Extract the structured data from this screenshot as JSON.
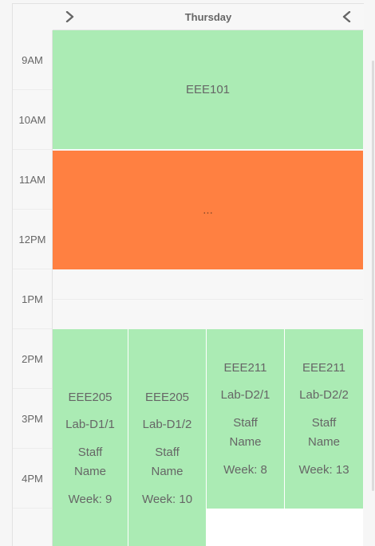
{
  "header": {
    "day": "Thursday",
    "next_icon": "chevron-right-icon",
    "prev_icon": "chevron-left-icon"
  },
  "times": [
    "9AM",
    "10AM",
    "11AM",
    "12PM",
    "1PM",
    "2PM",
    "3PM",
    "4PM"
  ],
  "events": {
    "eee101": {
      "title": "EEE101",
      "color": "#abebb4"
    },
    "ellipsis_event": {
      "title": "...",
      "color": "#ff8041"
    },
    "eee205_a": {
      "title": "EEE205",
      "lab": "Lab-D1/1",
      "staff_line1": "Staff",
      "staff_line2": "Name",
      "week": "Week: 9"
    },
    "eee205_b": {
      "title": "EEE205",
      "lab": "Lab-D1/2",
      "staff_line1": "Staff",
      "staff_line2": "Name",
      "week": "Week: 10"
    },
    "eee211_a": {
      "title": "EEE211",
      "lab": "Lab-D2/1",
      "staff_line1": "Staff",
      "staff_line2": "Name",
      "week": "Week: 8"
    },
    "eee211_b": {
      "title": "EEE211",
      "lab": "Lab-D2/2",
      "staff_line1": "Staff",
      "staff_line2": "Name",
      "week": "Week: 13"
    }
  }
}
